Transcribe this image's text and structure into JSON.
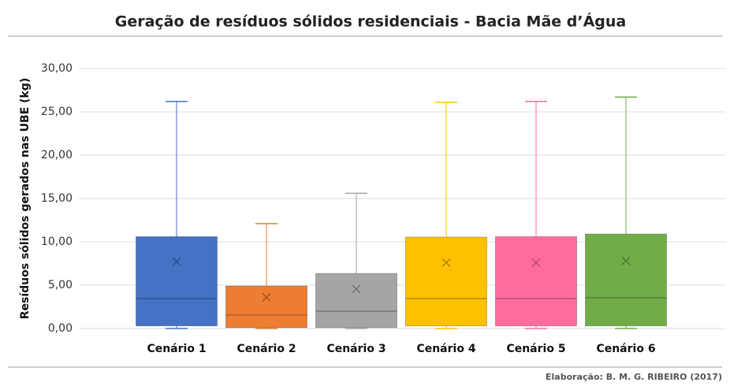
{
  "chart_data": {
    "type": "box",
    "title": "Geração de resíduos sólidos residenciais - Bacia Mãe d’Água",
    "y_label": "Resíduos sólidos gerados nas UBE (kg)",
    "footer": "Elaboração: B. M. G. RIBEIRO (2017)",
    "categories": [
      "Cenário 1",
      "Cenário 2",
      "Cenário 3",
      "Cenário 4",
      "Cenário 5",
      "Cenário 6"
    ],
    "colors": [
      "#4472c4",
      "#ed7d31",
      "#a5a5a5",
      "#ffc000",
      "#ff6c9c",
      "#70ad47"
    ],
    "boxes": [
      {
        "min": 0,
        "q1": 0.3,
        "median": 3.45,
        "q3": 10.6,
        "max": 26.2,
        "mean": 7.7
      },
      {
        "min": 0,
        "q1": 0.1,
        "median": 1.55,
        "q3": 4.9,
        "max": 12.1,
        "mean": 3.6
      },
      {
        "min": 0,
        "q1": 0.1,
        "median": 2.0,
        "q3": 6.35,
        "max": 15.6,
        "mean": 4.55
      },
      {
        "min": 0,
        "q1": 0.3,
        "median": 3.45,
        "q3": 10.55,
        "max": 26.1,
        "mean": 7.6
      },
      {
        "min": 0,
        "q1": 0.3,
        "median": 3.45,
        "q3": 10.6,
        "max": 26.2,
        "mean": 7.6
      },
      {
        "min": 0,
        "q1": 0.3,
        "median": 3.55,
        "q3": 10.9,
        "max": 26.7,
        "mean": 7.8
      }
    ],
    "ylim": [
      0,
      30
    ],
    "yticks": [
      {
        "value": 0,
        "label": "0,00"
      },
      {
        "value": 5,
        "label": "5,00"
      },
      {
        "value": 10,
        "label": "10,00"
      },
      {
        "value": 15,
        "label": "15,00"
      },
      {
        "value": 20,
        "label": "20,00"
      },
      {
        "value": 25,
        "label": "25,00"
      },
      {
        "value": 30,
        "label": "30,00"
      }
    ],
    "grid": true
  }
}
